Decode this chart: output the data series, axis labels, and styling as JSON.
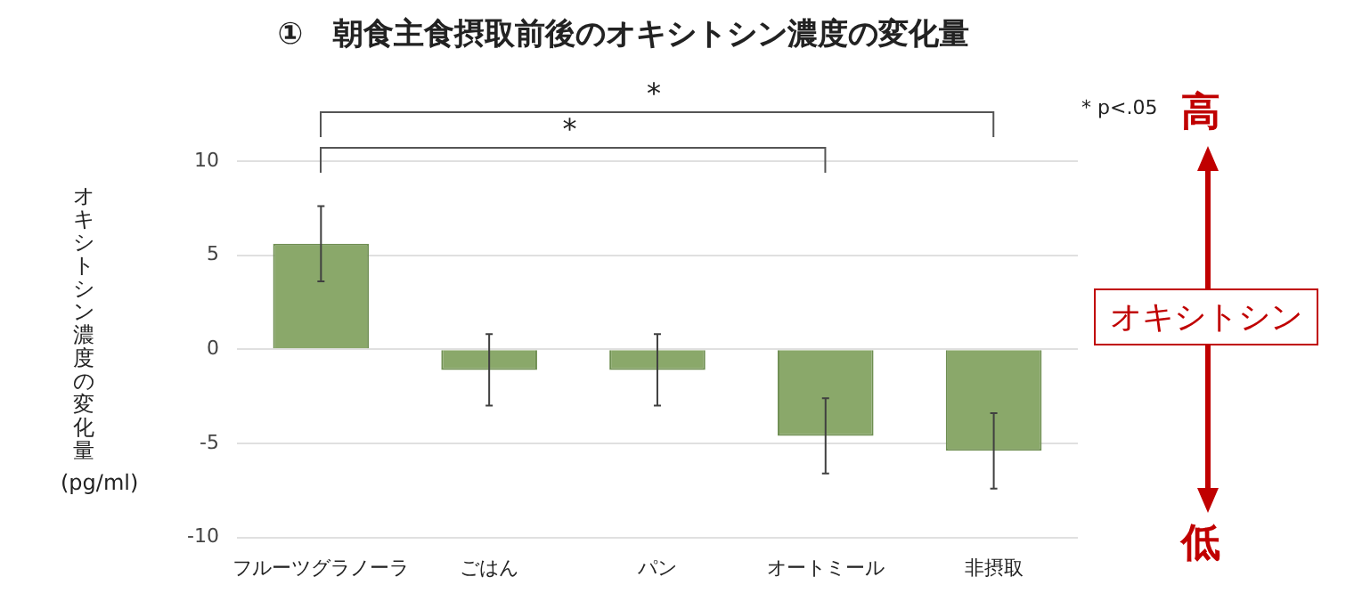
{
  "chart_data": {
    "type": "bar",
    "title": "①　朝食主食摂取前後のオキシトシン濃度の変化量",
    "ylabel": "オキシトシン濃度の変化量 (pg/ml)",
    "categories": [
      "フルーツグラノーラ",
      "ごはん",
      "パン",
      "オートミール",
      "非摂取"
    ],
    "values": [
      5.6,
      -1.1,
      -1.1,
      -4.6,
      -5.4
    ],
    "errors": [
      2.0,
      1.9,
      1.9,
      2.0,
      2.0
    ],
    "color": "#8aa86a",
    "ylim": [
      -10,
      10
    ],
    "yticks": [
      -10,
      -5,
      0,
      5,
      10
    ],
    "grid": "y",
    "annotations": [
      "*",
      "*",
      "* p<.05",
      "高",
      "オキシトシン",
      "低"
    ]
  }
}
